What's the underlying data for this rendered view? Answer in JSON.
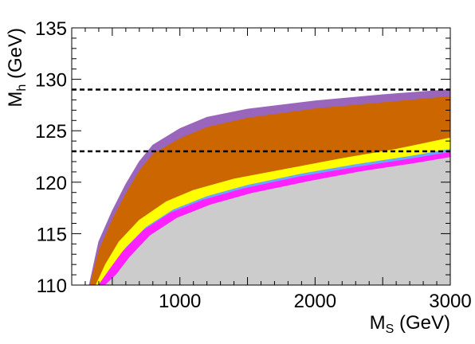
{
  "chart_data": {
    "type": "area",
    "title": "",
    "xlabel": "M_S (GeV)",
    "xlabel_main": "M",
    "xlabel_sub": "S",
    "xlabel_unit": "(GeV)",
    "ylabel": "M_h (GeV)",
    "ylabel_main": "M",
    "ylabel_sub": "h",
    "ylabel_unit": "(GeV)",
    "xlim": [
      200,
      3000
    ],
    "ylim": [
      110,
      135
    ],
    "x_ticks": [
      1000,
      2000,
      3000
    ],
    "x_tick_labels": [
      "1000",
      "2000",
      "3000"
    ],
    "y_ticks": [
      110,
      115,
      120,
      125,
      130,
      135
    ],
    "y_tick_labels": [
      "110",
      "115",
      "120",
      "125",
      "130",
      "135"
    ],
    "grid": false,
    "reference_lines": [
      {
        "style": "dashed",
        "y": 129
      },
      {
        "style": "dashed",
        "y": 123
      }
    ],
    "series": [
      {
        "color": "#cc6600",
        "upper": {
          "x": [
            330,
            400,
            500,
            600,
            700,
            800,
            1000,
            1200,
            1500,
            2000,
            2500,
            3000
          ],
          "y": [
            110,
            113.5,
            116.5,
            119,
            121.2,
            122.8,
            124.3,
            125.4,
            126.3,
            127.2,
            127.8,
            128.4
          ]
        },
        "lower": {
          "x": [
            330,
            3000
          ],
          "y": [
            110,
            110
          ]
        }
      },
      {
        "color": "#9966bb",
        "upper": {
          "x": [
            330,
            400,
            500,
            600,
            700,
            800,
            1000,
            1200,
            1500,
            2000,
            2500,
            3000
          ],
          "y": [
            110,
            114.2,
            117.2,
            119.8,
            122,
            123.6,
            125.2,
            126.3,
            127.1,
            127.9,
            128.5,
            129
          ]
        },
        "lower": {
          "x": [
            330,
            400,
            500,
            600,
            700,
            800,
            1000,
            1200,
            1500,
            2000,
            2500,
            3000
          ],
          "y": [
            110,
            113.5,
            116.5,
            119,
            121.2,
            122.8,
            124.3,
            125.4,
            126.3,
            127.2,
            127.8,
            128.4
          ]
        }
      },
      {
        "color": "#ffff00",
        "upper": {
          "x": [
            380,
            450,
            550,
            700,
            900,
            1100,
            1400,
            1800,
            2200,
            2600,
            3000
          ],
          "y": [
            110,
            112,
            114.2,
            116.3,
            118.1,
            119.2,
            120.3,
            121.3,
            122.3,
            123.2,
            124.3
          ]
        },
        "lower": {
          "x": [
            380,
            3000
          ],
          "y": [
            110,
            110
          ]
        }
      },
      {
        "color": "#66aaff",
        "upper": {
          "x": [
            420,
            500,
            600,
            750,
            950,
            1200,
            1500,
            1900,
            2300,
            2700,
            3000
          ],
          "y": [
            110,
            111.8,
            113.6,
            115.6,
            117.3,
            118.6,
            119.7,
            120.8,
            121.7,
            122.5,
            123.2
          ]
        },
        "lower": {
          "x": [
            420,
            3000
          ],
          "y": [
            110,
            110
          ]
        }
      },
      {
        "color": "#ff22ff",
        "upper": {
          "x": [
            400,
            480,
            580,
            730,
            930,
            1180,
            1480,
            1880,
            2280,
            2680,
            3000
          ],
          "y": [
            110,
            111.5,
            113.3,
            115.3,
            117,
            118.3,
            119.4,
            120.5,
            121.4,
            122.2,
            122.9
          ]
        },
        "lower": {
          "x": [
            400,
            3000
          ],
          "y": [
            110,
            110
          ]
        }
      },
      {
        "color": "#cccccc",
        "upper": {
          "x": [
            450,
            530,
            630,
            780,
            980,
            1230,
            1530,
            1930,
            2330,
            2730,
            3000
          ],
          "y": [
            110,
            111,
            112.7,
            114.8,
            116.5,
            117.8,
            118.9,
            120,
            121,
            121.8,
            122.4
          ]
        },
        "lower": {
          "x": [
            450,
            3000
          ],
          "y": [
            110,
            110
          ]
        }
      }
    ]
  }
}
